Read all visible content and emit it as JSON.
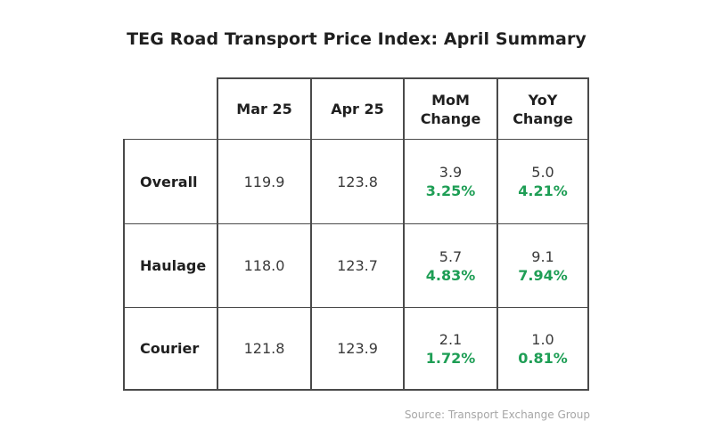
{
  "title": "TEG Road Transport Price Index: April Summary",
  "columns": [
    {
      "label_line1": "Mar 25",
      "label_line2": ""
    },
    {
      "label_line1": "Apr 25",
      "label_line2": ""
    },
    {
      "label_line1": "MoM",
      "label_line2": "Change"
    },
    {
      "label_line1": "YoY",
      "label_line2": "Change"
    }
  ],
  "rows": [
    {
      "label": "Overall",
      "mar": "119.9",
      "apr": "123.8",
      "mom_abs": "3.9",
      "mom_pct": "3.25%",
      "yoy_abs": "5.0",
      "yoy_pct": "4.21%"
    },
    {
      "label": "Haulage",
      "mar": "118.0",
      "apr": "123.7",
      "mom_abs": "5.7",
      "mom_pct": "4.83%",
      "yoy_abs": "9.1",
      "yoy_pct": "7.94%"
    },
    {
      "label": "Courier",
      "mar": "121.8",
      "apr": "123.9",
      "mom_abs": "2.1",
      "mom_pct": "1.72%",
      "yoy_abs": "1.0",
      "yoy_pct": "0.81%"
    }
  ],
  "source": "Source: Transport Exchange Group",
  "colors": {
    "positive_change": "#1e9e55",
    "grid_line": "#4a4a4a"
  }
}
